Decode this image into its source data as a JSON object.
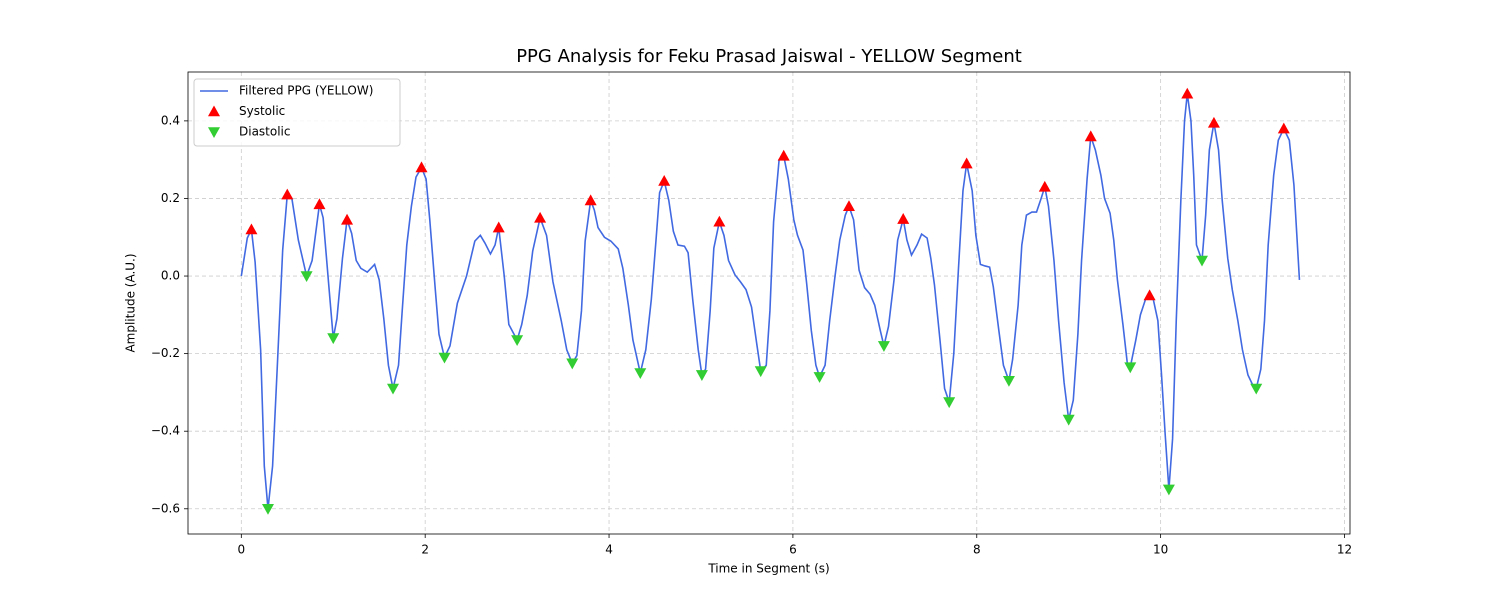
{
  "chart_data": {
    "type": "line",
    "title": "PPG Analysis for Feku Prasad Jaiswal - YELLOW Segment",
    "xlabel": "Time in Segment (s)",
    "ylabel": "Amplitude (A.U.)",
    "xlim": [
      -0.58,
      12.06
    ],
    "ylim": [
      -0.665,
      0.526
    ],
    "xticks": [
      0,
      2,
      4,
      6,
      8,
      10,
      12
    ],
    "yticks": [
      {
        "value": -0.6,
        "label": "−0.6"
      },
      {
        "value": -0.4,
        "label": "−0.4"
      },
      {
        "value": -0.2,
        "label": "−0.2"
      },
      {
        "value": 0,
        "label": "0.0"
      },
      0.2,
      0.4
    ],
    "grid": true,
    "legend": "upper left",
    "series": [
      {
        "name": "Filtered PPG (YELLOW)",
        "type": "line",
        "color": "#4169e1",
        "x": [
          0,
          0.065,
          0.11,
          0.15,
          0.21,
          0.25,
          0.29,
          0.34,
          0.39,
          0.45,
          0.5,
          0.55,
          0.62,
          0.71,
          0.77,
          0.85,
          0.89,
          0.95,
          1.0,
          1.04,
          1.1,
          1.15,
          1.2,
          1.25,
          1.3,
          1.37,
          1.45,
          1.5,
          1.55,
          1.6,
          1.65,
          1.71,
          1.75,
          1.8,
          1.85,
          1.9,
          1.96,
          2.01,
          2.05,
          2.11,
          2.15,
          2.21,
          2.27,
          2.35,
          2.45,
          2.54,
          2.6,
          2.65,
          2.71,
          2.76,
          2.8,
          2.86,
          2.91,
          3.0,
          3.05,
          3.11,
          3.17,
          3.25,
          3.32,
          3.39,
          3.48,
          3.54,
          3.6,
          3.65,
          3.7,
          3.74,
          3.8,
          3.84,
          3.88,
          3.95,
          4.02,
          4.1,
          4.15,
          4.21,
          4.26,
          4.34,
          4.4,
          4.46,
          4.51,
          4.55,
          4.6,
          4.65,
          4.7,
          4.75,
          4.82,
          4.86,
          4.91,
          4.97,
          5.01,
          5.05,
          5.1,
          5.14,
          5.2,
          5.25,
          5.3,
          5.37,
          5.43,
          5.49,
          5.55,
          5.61,
          5.65,
          5.71,
          5.75,
          5.79,
          5.85,
          5.9,
          5.95,
          6.01,
          6.05,
          6.11,
          6.15,
          6.2,
          6.25,
          6.29,
          6.35,
          6.4,
          6.46,
          6.51,
          6.57,
          6.61,
          6.66,
          6.72,
          6.78,
          6.84,
          6.89,
          6.95,
          6.99,
          7.04,
          7.1,
          7.14,
          7.2,
          7.24,
          7.29,
          7.35,
          7.4,
          7.46,
          7.5,
          7.54,
          7.6,
          7.65,
          7.7,
          7.75,
          7.8,
          7.85,
          7.89,
          7.95,
          7.99,
          8.04,
          8.09,
          8.14,
          8.18,
          8.24,
          8.29,
          8.35,
          8.39,
          8.45,
          8.49,
          8.54,
          8.6,
          8.65,
          8.7,
          8.74,
          8.78,
          8.84,
          8.89,
          8.95,
          9.0,
          9.05,
          9.1,
          9.14,
          9.2,
          9.24,
          9.29,
          9.35,
          9.39,
          9.45,
          9.49,
          9.53,
          9.59,
          9.64,
          9.67,
          9.73,
          9.78,
          9.84,
          9.88,
          9.92,
          9.97,
          10.01,
          10.05,
          10.09,
          10.13,
          10.17,
          10.22,
          10.26,
          10.29,
          10.33,
          10.36,
          10.39,
          10.45,
          10.49,
          10.53,
          10.58,
          10.63,
          10.67,
          10.73,
          10.78,
          10.84,
          10.89,
          10.95,
          11.0,
          11.04,
          11.09,
          11.13,
          11.17,
          11.23,
          11.28,
          11.34,
          11.4,
          11.45,
          11.51
        ],
        "values": [
          0,
          0.098,
          0.12,
          0.036,
          -0.19,
          -0.49,
          -0.6,
          -0.49,
          -0.24,
          0.067,
          0.21,
          0.2,
          0.093,
          0.0,
          0.04,
          0.185,
          0.15,
          -0.02,
          -0.16,
          -0.11,
          0.045,
          0.145,
          0.11,
          0.04,
          0.02,
          0.01,
          0.03,
          -0.01,
          -0.11,
          -0.23,
          -0.29,
          -0.23,
          -0.09,
          0.08,
          0.18,
          0.255,
          0.28,
          0.25,
          0.145,
          -0.035,
          -0.15,
          -0.21,
          -0.18,
          -0.07,
          0.0,
          0.09,
          0.105,
          0.085,
          0.057,
          0.08,
          0.125,
          0.0,
          -0.125,
          -0.165,
          -0.125,
          -0.05,
          0.065,
          0.15,
          0.105,
          -0.015,
          -0.115,
          -0.19,
          -0.225,
          -0.205,
          -0.09,
          0.09,
          0.195,
          0.17,
          0.125,
          0.1,
          0.09,
          0.07,
          0.02,
          -0.075,
          -0.165,
          -0.25,
          -0.19,
          -0.06,
          0.09,
          0.215,
          0.245,
          0.195,
          0.115,
          0.08,
          0.077,
          0.06,
          -0.06,
          -0.19,
          -0.255,
          -0.24,
          -0.09,
          0.072,
          0.14,
          0.105,
          0.04,
          0.003,
          -0.015,
          -0.035,
          -0.08,
          -0.18,
          -0.245,
          -0.23,
          -0.09,
          0.14,
          0.3,
          0.31,
          0.25,
          0.145,
          0.105,
          0.067,
          -0.02,
          -0.14,
          -0.23,
          -0.26,
          -0.23,
          -0.115,
          0.003,
          0.093,
          0.157,
          0.18,
          0.145,
          0.015,
          -0.03,
          -0.047,
          -0.075,
          -0.14,
          -0.18,
          -0.13,
          -0.01,
          0.093,
          0.147,
          0.093,
          0.054,
          0.08,
          0.108,
          0.098,
          0.046,
          -0.023,
          -0.165,
          -0.29,
          -0.325,
          -0.2,
          0.015,
          0.22,
          0.29,
          0.22,
          0.105,
          0.03,
          0.026,
          0.023,
          -0.028,
          -0.14,
          -0.23,
          -0.27,
          -0.215,
          -0.075,
          0.08,
          0.157,
          0.165,
          0.165,
          0.2,
          0.23,
          0.18,
          0.04,
          -0.115,
          -0.275,
          -0.37,
          -0.32,
          -0.15,
          0.04,
          0.25,
          0.36,
          0.325,
          0.26,
          0.2,
          0.162,
          0.093,
          -0.01,
          -0.125,
          -0.23,
          -0.235,
          -0.165,
          -0.1,
          -0.057,
          -0.05,
          -0.06,
          -0.115,
          -0.255,
          -0.41,
          -0.55,
          -0.42,
          -0.115,
          0.195,
          0.4,
          0.47,
          0.4,
          0.26,
          0.08,
          0.04,
          0.157,
          0.325,
          0.395,
          0.325,
          0.195,
          0.046,
          -0.036,
          -0.115,
          -0.19,
          -0.255,
          -0.28,
          -0.29,
          -0.24,
          -0.115,
          0.08,
          0.26,
          0.35,
          0.38,
          0.35,
          0.235,
          -0.01
        ]
      },
      {
        "name": "Systolic",
        "type": "scatter",
        "marker": "triangle-up",
        "color": "#ff0000",
        "x": [
          0.11,
          0.5,
          0.85,
          1.15,
          1.96,
          2.8,
          3.25,
          3.8,
          4.6,
          5.2,
          5.9,
          6.61,
          7.2,
          7.89,
          8.74,
          9.24,
          9.88,
          10.29,
          10.58,
          11.34
        ],
        "values": [
          0.12,
          0.21,
          0.185,
          0.145,
          0.28,
          0.125,
          0.15,
          0.195,
          0.245,
          0.14,
          0.31,
          0.18,
          0.147,
          0.29,
          0.23,
          0.36,
          -0.05,
          0.47,
          0.395,
          0.38
        ]
      },
      {
        "name": "Diastolic",
        "type": "scatter",
        "marker": "triangle-down",
        "color": "#32cd32",
        "x": [
          0.29,
          0.71,
          1.0,
          1.65,
          2.21,
          3.0,
          3.6,
          4.34,
          5.01,
          5.65,
          6.29,
          6.99,
          7.7,
          8.35,
          9.0,
          9.67,
          10.09,
          10.45,
          11.04
        ],
        "values": [
          -0.6,
          0.0,
          -0.16,
          -0.29,
          -0.21,
          -0.165,
          -0.225,
          -0.25,
          -0.255,
          -0.245,
          -0.26,
          -0.18,
          -0.325,
          -0.27,
          -0.37,
          -0.235,
          -0.55,
          0.04,
          -0.29
        ]
      }
    ]
  }
}
